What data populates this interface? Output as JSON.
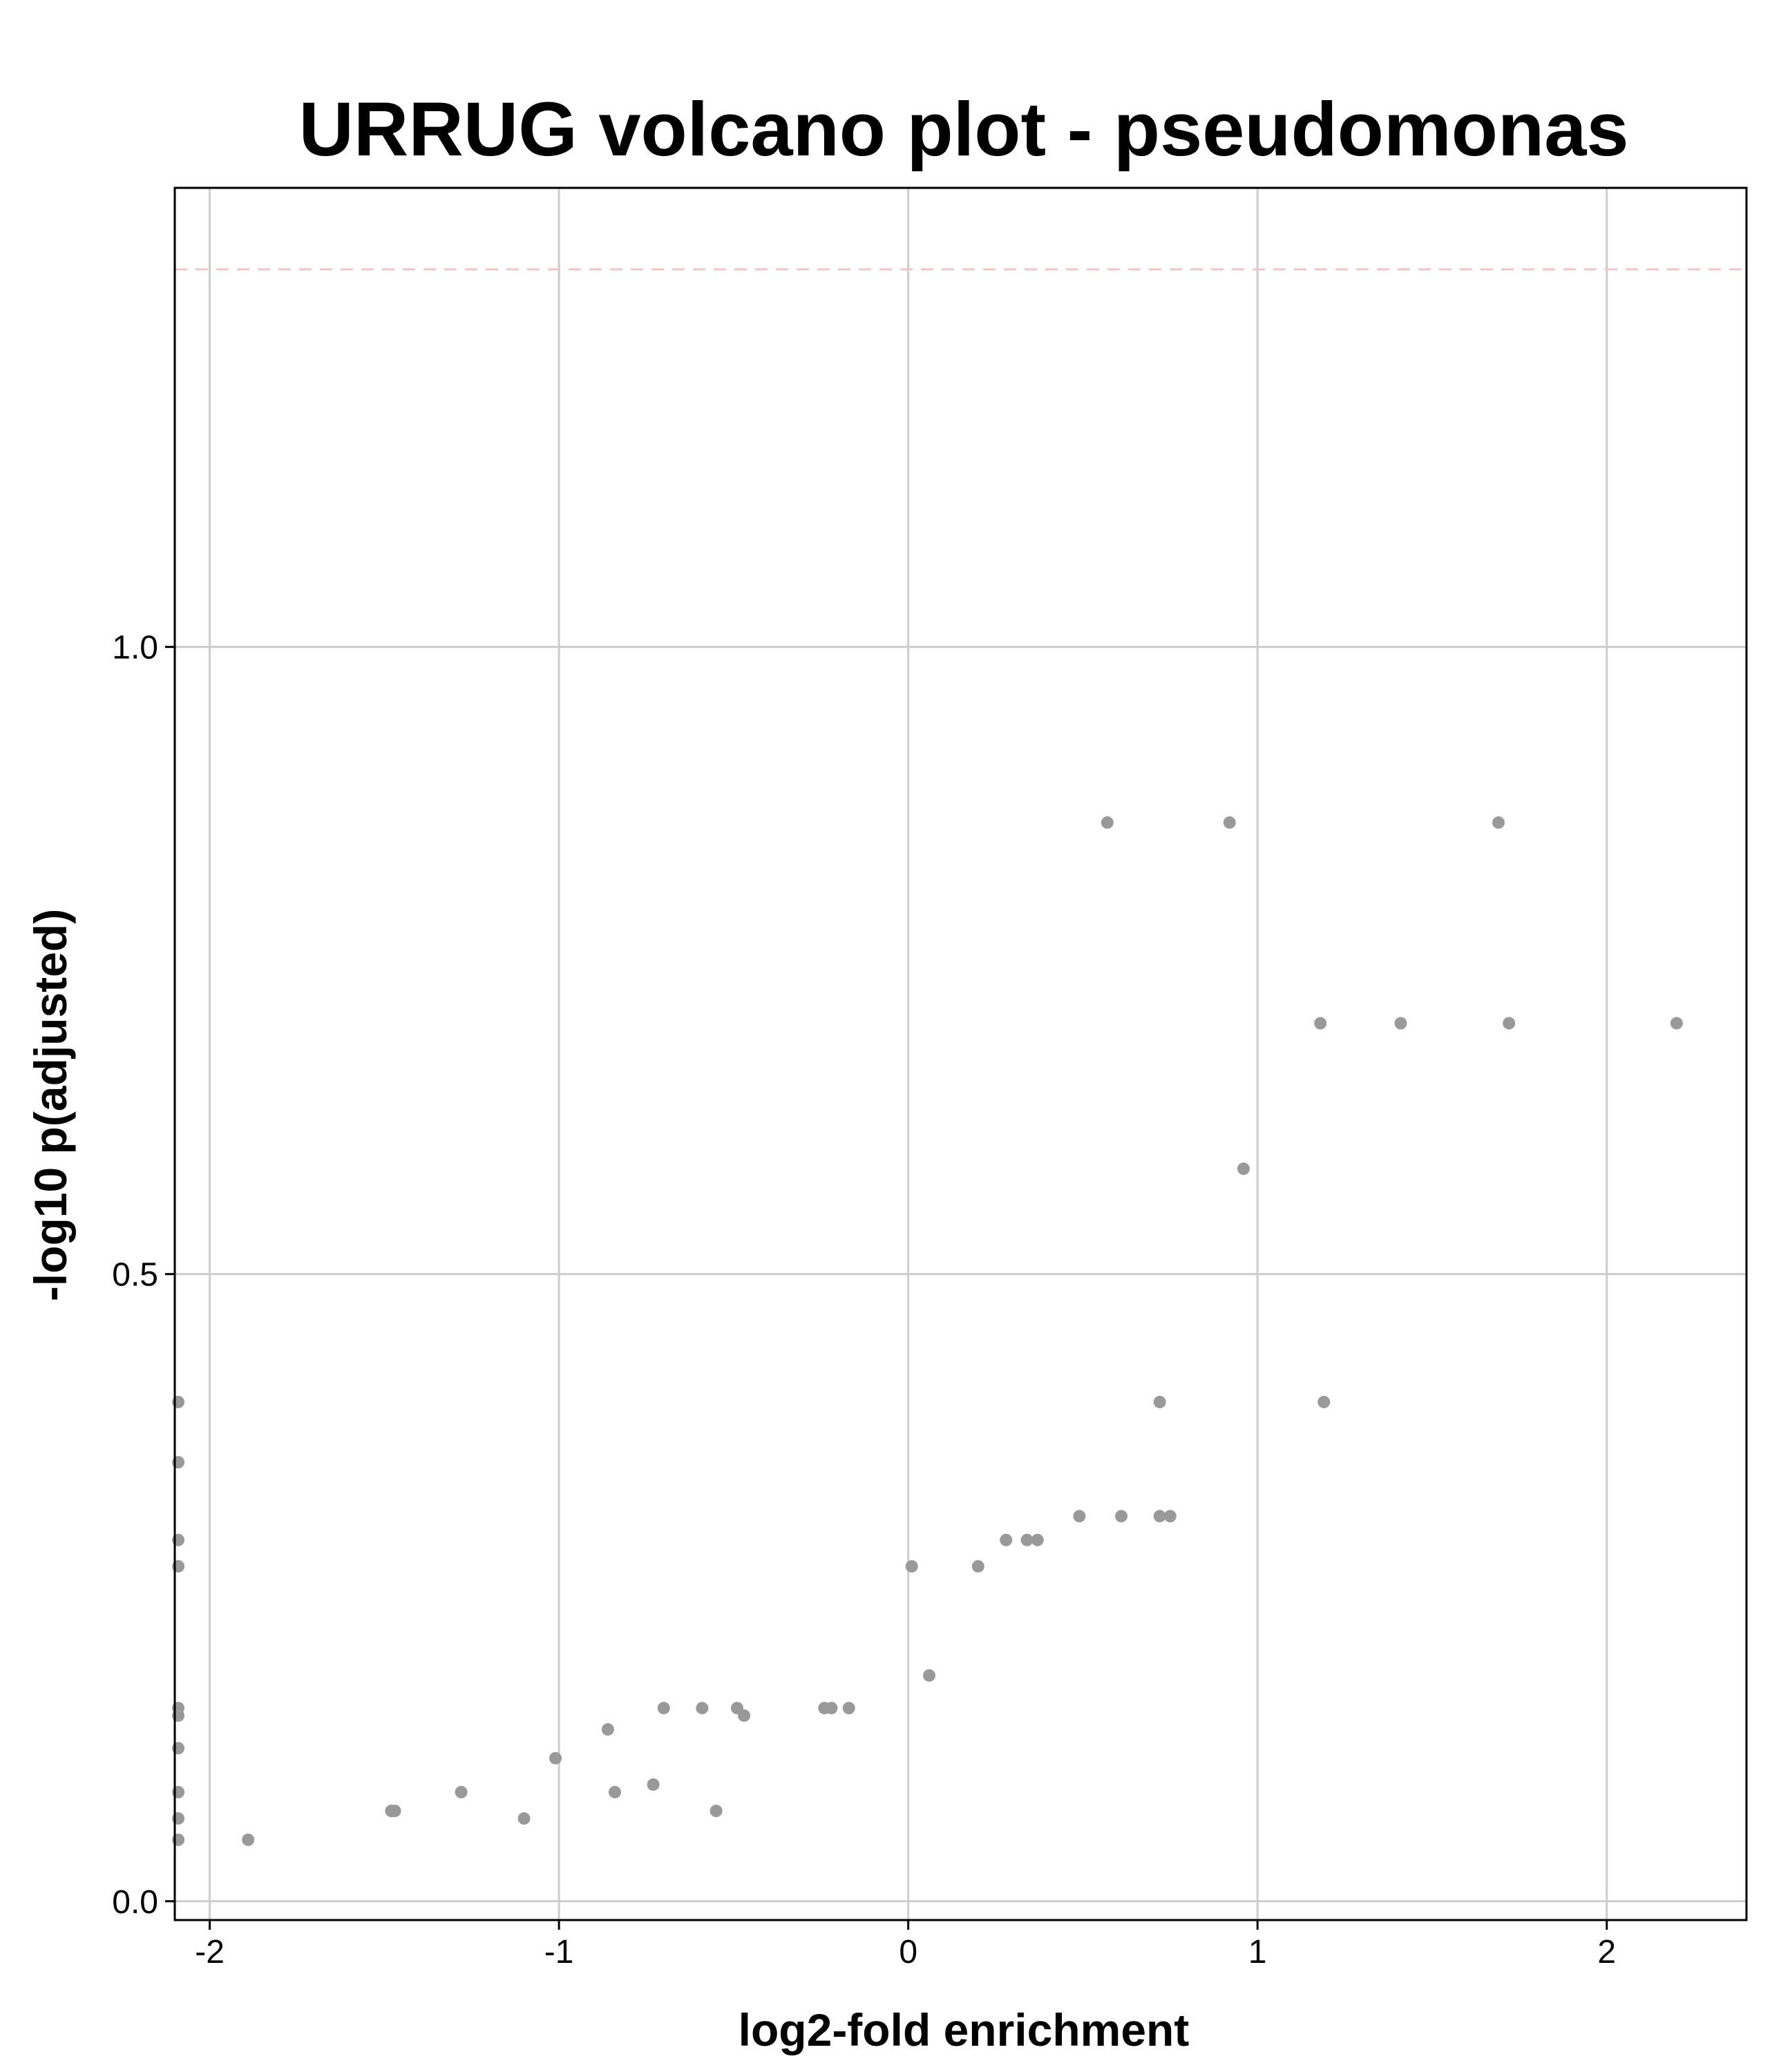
{
  "chart_data": {
    "type": "scatter",
    "title": "URRUG volcano plot -  pseudomonas",
    "xlabel": "log2-fold enrichment",
    "ylabel": "-log10 p(adjusted)",
    "xlim": [
      -2.1,
      2.4
    ],
    "ylim": [
      -0.015,
      1.366
    ],
    "x_ticks": [
      {
        "value": -2,
        "label": "-2"
      },
      {
        "value": -1,
        "label": "-1"
      },
      {
        "value": 0,
        "label": "0"
      },
      {
        "value": 1,
        "label": "1"
      },
      {
        "value": 2,
        "label": "2"
      }
    ],
    "y_ticks": [
      {
        "value": 0.0,
        "label": "0.0"
      },
      {
        "value": 0.5,
        "label": "0.5"
      },
      {
        "value": 1.0,
        "label": "1.0"
      }
    ],
    "grid": true,
    "legend": "none",
    "reference_line": {
      "y": 1.301,
      "color": "#f2c4c4"
    },
    "point_color": "#999999",
    "points": [
      {
        "x": 0.57,
        "y": 0.86
      },
      {
        "x": 0.92,
        "y": 0.86
      },
      {
        "x": 1.69,
        "y": 0.86
      },
      {
        "x": 1.18,
        "y": 0.7
      },
      {
        "x": 1.41,
        "y": 0.7
      },
      {
        "x": 1.72,
        "y": 0.7
      },
      {
        "x": 2.2,
        "y": 0.7
      },
      {
        "x": 0.96,
        "y": 0.584
      },
      {
        "x": 0.72,
        "y": 0.398
      },
      {
        "x": 1.19,
        "y": 0.398
      },
      {
        "x": 0.49,
        "y": 0.307
      },
      {
        "x": 0.61,
        "y": 0.307
      },
      {
        "x": 0.72,
        "y": 0.307
      },
      {
        "x": 0.75,
        "y": 0.307
      },
      {
        "x": 0.28,
        "y": 0.288
      },
      {
        "x": 0.34,
        "y": 0.288
      },
      {
        "x": 0.37,
        "y": 0.288
      },
      {
        "x": 0.01,
        "y": 0.267
      },
      {
        "x": 0.2,
        "y": 0.267
      },
      {
        "x": 0.06,
        "y": 0.18
      },
      {
        "x": -0.7,
        "y": 0.154
      },
      {
        "x": -0.59,
        "y": 0.154
      },
      {
        "x": -0.49,
        "y": 0.154
      },
      {
        "x": -0.24,
        "y": 0.154
      },
      {
        "x": -0.22,
        "y": 0.154
      },
      {
        "x": -0.17,
        "y": 0.154
      },
      {
        "x": -0.47,
        "y": 0.148
      },
      {
        "x": -0.86,
        "y": 0.137
      },
      {
        "x": -1.01,
        "y": 0.114
      },
      {
        "x": -0.73,
        "y": 0.093
      },
      {
        "x": -0.84,
        "y": 0.087
      },
      {
        "x": -1.28,
        "y": 0.087
      },
      {
        "x": -1.48,
        "y": 0.072
      },
      {
        "x": -1.47,
        "y": 0.072
      },
      {
        "x": -0.55,
        "y": 0.072
      },
      {
        "x": -1.1,
        "y": 0.066
      },
      {
        "x": -1.89,
        "y": 0.049
      },
      {
        "x": -2.09,
        "y": 0.398
      },
      {
        "x": -2.09,
        "y": 0.35
      },
      {
        "x": -2.09,
        "y": 0.288
      },
      {
        "x": -2.09,
        "y": 0.267
      },
      {
        "x": -2.09,
        "y": 0.154
      },
      {
        "x": -2.09,
        "y": 0.148
      },
      {
        "x": -2.09,
        "y": 0.122
      },
      {
        "x": -2.09,
        "y": 0.087
      },
      {
        "x": -2.09,
        "y": 0.066
      },
      {
        "x": -2.09,
        "y": 0.049
      }
    ]
  }
}
